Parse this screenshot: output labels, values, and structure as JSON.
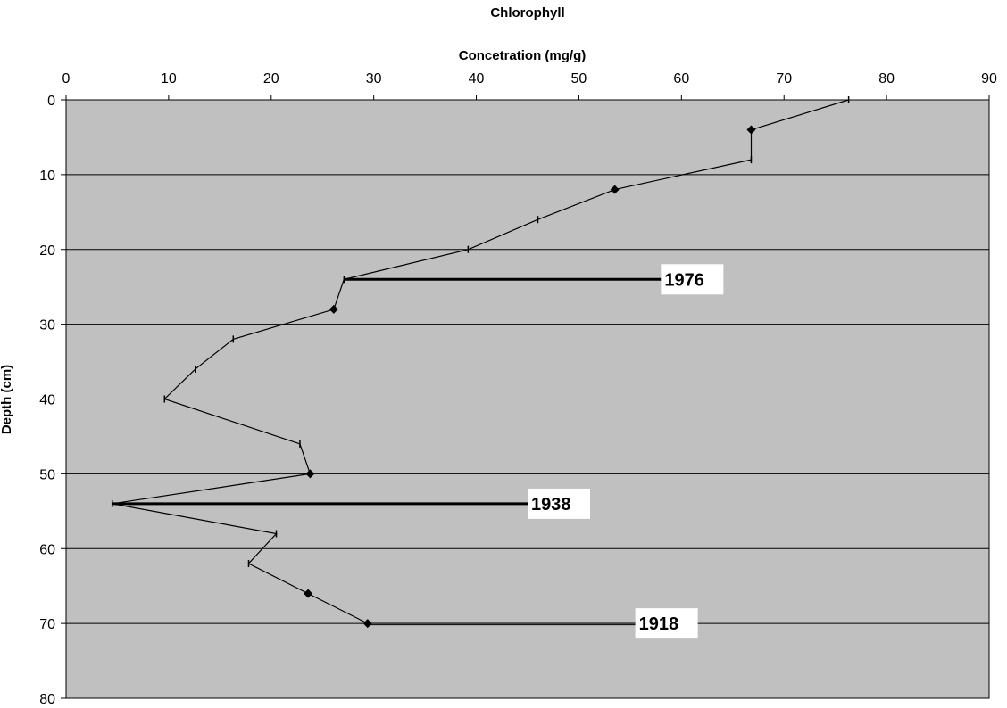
{
  "chart_data": {
    "type": "line",
    "title": "Chlorophyll",
    "xlabel": "Concetration (mg/g)",
    "ylabel": "Depth (cm)",
    "xlim": [
      0,
      90
    ],
    "ylim": [
      0,
      80
    ],
    "x_axis_position": "top",
    "y_axis_reversed": true,
    "x_ticks": [
      "0",
      "10",
      "20",
      "30",
      "40",
      "50",
      "60",
      "70",
      "80",
      "90"
    ],
    "y_ticks": [
      "0",
      "10",
      "20",
      "30",
      "40",
      "50",
      "60",
      "70",
      "80"
    ],
    "grid": "horizontal",
    "plot_background": "#c0c0c0",
    "line_color": "#000000",
    "series": [
      {
        "points": [
          {
            "x": 76.3,
            "y": 0,
            "marker": "dash"
          },
          {
            "x": 66.8,
            "y": 4,
            "marker": "diamond"
          },
          {
            "x": 66.8,
            "y": 8,
            "marker": "dash"
          },
          {
            "x": 53.5,
            "y": 12,
            "marker": "diamond"
          },
          {
            "x": 46.0,
            "y": 16,
            "marker": "dash"
          },
          {
            "x": 39.2,
            "y": 20,
            "marker": "dash"
          },
          {
            "x": 27.1,
            "y": 24,
            "marker": "dash"
          },
          {
            "x": 26.1,
            "y": 28,
            "marker": "diamond"
          },
          {
            "x": 16.3,
            "y": 32,
            "marker": "dash"
          },
          {
            "x": 12.6,
            "y": 36,
            "marker": "dash"
          },
          {
            "x": 9.6,
            "y": 40,
            "marker": "dash"
          },
          {
            "x": 22.8,
            "y": 46,
            "marker": "dash"
          },
          {
            "x": 23.8,
            "y": 50,
            "marker": "diamond"
          },
          {
            "x": 4.5,
            "y": 54,
            "marker": "dash"
          },
          {
            "x": 20.5,
            "y": 58,
            "marker": "dash"
          },
          {
            "x": 17.8,
            "y": 62,
            "marker": "dash"
          },
          {
            "x": 23.6,
            "y": 66,
            "marker": "diamond"
          },
          {
            "x": 29.4,
            "y": 70,
            "marker": "diamond"
          }
        ]
      }
    ],
    "annotations": [
      {
        "label": "1976",
        "x_start": 27.1,
        "x_end": 58,
        "y": 24,
        "weight": "thick"
      },
      {
        "label": "1938",
        "x_start": 4.5,
        "x_end": 45,
        "y": 54,
        "weight": "thick"
      },
      {
        "label": "1918",
        "x_start": 29.4,
        "x_end": 55.5,
        "y": 70,
        "weight": "double"
      }
    ]
  }
}
